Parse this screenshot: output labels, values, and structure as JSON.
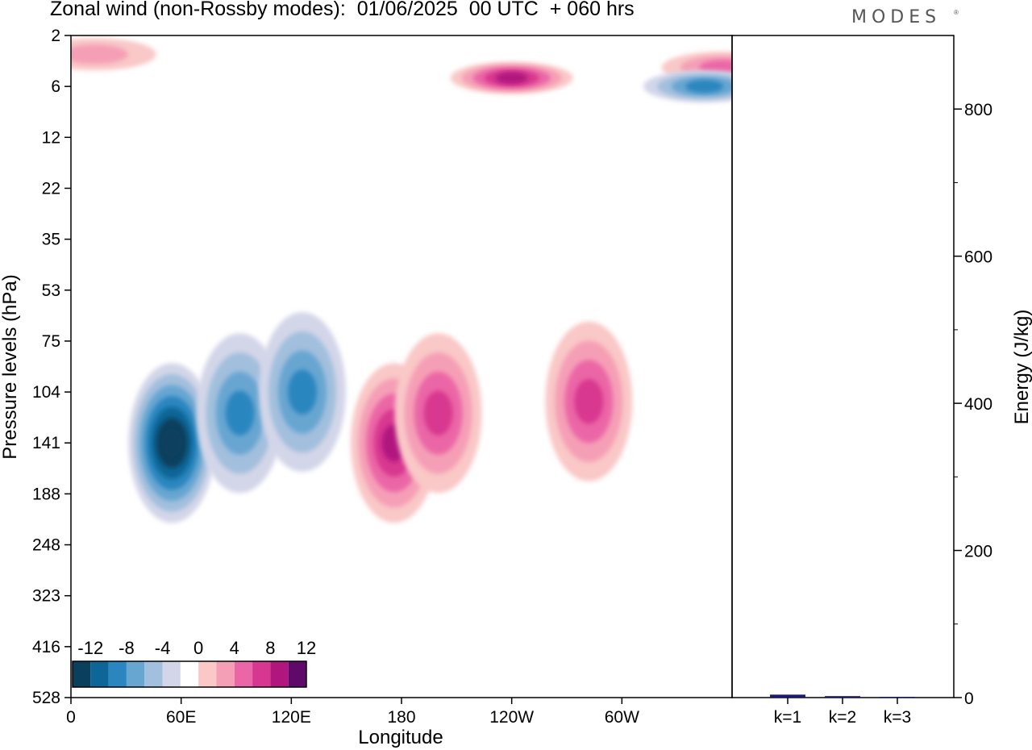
{
  "header": {
    "title": "Zonal wind (non-Rossby modes):  01/06/2025  00 UTC  + 060 hrs",
    "brand": "MODES",
    "brand_mark": "®"
  },
  "chart_data": [
    {
      "type": "heatmap",
      "title": "Zonal wind (non-Rossby modes):  01/06/2025  00 UTC  + 060 hrs",
      "xlabel": "Longitude",
      "ylabel": "Pressure levels (hPa)",
      "x_ticks": [
        "0",
        "60E",
        "120E",
        "180",
        "120W",
        "60W"
      ],
      "y_ticks": [
        "2",
        "6",
        "12",
        "22",
        "35",
        "53",
        "75",
        "104",
        "141",
        "188",
        "248",
        "323",
        "416",
        "528"
      ],
      "colorbar": {
        "tick_labels": [
          "-12",
          "-8",
          "-4",
          "0",
          "4",
          "8",
          "12"
        ],
        "levels": [
          -14,
          -12,
          -10,
          -8,
          -6,
          -4,
          -2,
          2,
          4,
          6,
          8,
          10,
          12,
          14
        ],
        "colors": [
          "#0b3f5e",
          "#0d6697",
          "#2b86bf",
          "#67a6d1",
          "#a2bfdd",
          "#d3d6e8",
          "#ffffff",
          "#f9c8c7",
          "#f59fb6",
          "#eb66a6",
          "#d8378f",
          "#b1167f",
          "#5f0a6b"
        ]
      },
      "features": [
        {
          "lon": 55,
          "level": "141",
          "value": -14
        },
        {
          "lon": 92,
          "level": "118",
          "value": -9
        },
        {
          "lon": 126,
          "level": "104",
          "value": -9
        },
        {
          "lon": 176,
          "level": "141",
          "value": 10
        },
        {
          "lon": 200,
          "level": "118",
          "value": 8
        },
        {
          "lon": 282,
          "level": "110",
          "value": 8
        },
        {
          "lon": 240,
          "level": "5",
          "value": 10
        },
        {
          "lon": 355,
          "level": "4",
          "value": 7
        },
        {
          "lon": 345,
          "level": "6",
          "value": -8
        },
        {
          "lon": 13,
          "level": "3",
          "value": 4
        }
      ]
    },
    {
      "type": "bar",
      "ylabel": "Energy (J/kg)",
      "categories": [
        "k=1",
        "k=2",
        "k=3"
      ],
      "values": [
        4,
        2,
        1
      ],
      "ylim": [
        0,
        900
      ],
      "y_ticks": [
        "0",
        "200",
        "400",
        "600",
        "800"
      ],
      "bar_color": "#1a1a7a"
    }
  ]
}
